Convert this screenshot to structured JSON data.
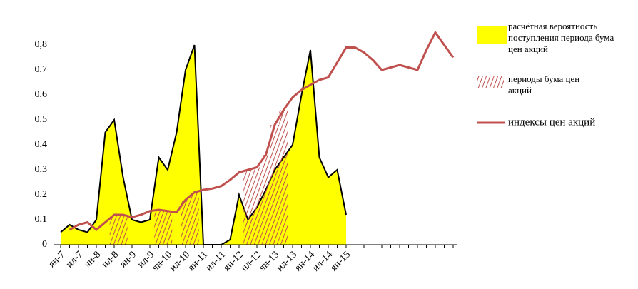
{
  "chart_data": {
    "type": "area-line",
    "categories": [
      "ян-7",
      null,
      "ил-7",
      null,
      "ян-8",
      null,
      "ил-8",
      null,
      "ян-9",
      null,
      "ил-9",
      null,
      "ян-10",
      null,
      "ил-10",
      null,
      "ян-11",
      null,
      "ил-11",
      null,
      "ян-12",
      null,
      "ил-12",
      null,
      "ян-13",
      null,
      "ил-13",
      null,
      "ян-14",
      null,
      "ил-14",
      null,
      "ян-15",
      null,
      null,
      null,
      null,
      null,
      null,
      null,
      null,
      null,
      null,
      null,
      null
    ],
    "series": [
      {
        "name": "расчётная вероятность поступления периода бума цен акций",
        "kind": "area",
        "color": "#ffff00",
        "values": [
          0.05,
          0.08,
          0.06,
          0.05,
          0.1,
          0.45,
          0.5,
          0.27,
          0.1,
          0.09,
          0.1,
          0.35,
          0.3,
          0.45,
          0.7,
          0.8,
          0,
          0,
          0,
          0.02,
          0.2,
          0.1,
          0.15,
          0.22,
          0.3,
          0.35,
          0.4,
          0.6,
          0.78,
          0.35,
          0.27,
          0.3,
          0.12,
          null,
          null,
          null,
          null,
          null,
          null,
          null,
          null,
          null,
          null,
          null,
          null
        ]
      },
      {
        "name": "периоды бума цен акций",
        "kind": "hatch",
        "color": "#c0504d",
        "values": [
          null,
          null,
          null,
          null,
          null,
          null,
          0.12,
          0.12,
          null,
          null,
          null,
          0.14,
          0.135,
          null,
          0.18,
          0.21,
          null,
          null,
          null,
          null,
          null,
          0.3,
          0.31,
          0.36,
          0.48,
          0.54,
          null,
          null,
          null,
          null,
          null,
          null,
          null,
          null,
          null,
          null,
          null,
          null,
          null,
          null,
          null,
          null,
          null,
          null,
          null
        ]
      },
      {
        "name": "индексы цен акций",
        "kind": "line",
        "color": "#c0504d",
        "values": [
          null,
          0.06,
          0.08,
          0.09,
          0.06,
          0.09,
          0.12,
          0.12,
          0.11,
          0.12,
          0.135,
          0.14,
          0.135,
          0.13,
          0.18,
          0.21,
          0.22,
          0.225,
          0.235,
          0.26,
          0.29,
          0.3,
          0.31,
          0.36,
          0.48,
          0.54,
          0.59,
          0.62,
          0.64,
          0.66,
          0.67,
          0.73,
          0.79,
          0.79,
          0.77,
          0.74,
          0.7,
          0.71,
          0.72,
          0.71,
          0.7,
          0.78,
          0.85,
          0.8,
          0.75
        ]
      }
    ],
    "ylim": [
      0,
      0.8
    ],
    "yticks": [
      0,
      {
        "value": 0.1,
        "label": "0,1"
      },
      {
        "value": 0.2,
        "label": "0,2"
      },
      {
        "value": 0.3,
        "label": "0,3"
      },
      {
        "value": 0.4,
        "label": "0,4"
      },
      {
        "value": 0.5,
        "label": "0,5"
      },
      {
        "value": 0.6,
        "label": "0,6"
      },
      {
        "value": 0.7,
        "label": "0,7"
      },
      {
        "value": 0.8,
        "label": "0,8"
      }
    ],
    "legend": "right"
  }
}
